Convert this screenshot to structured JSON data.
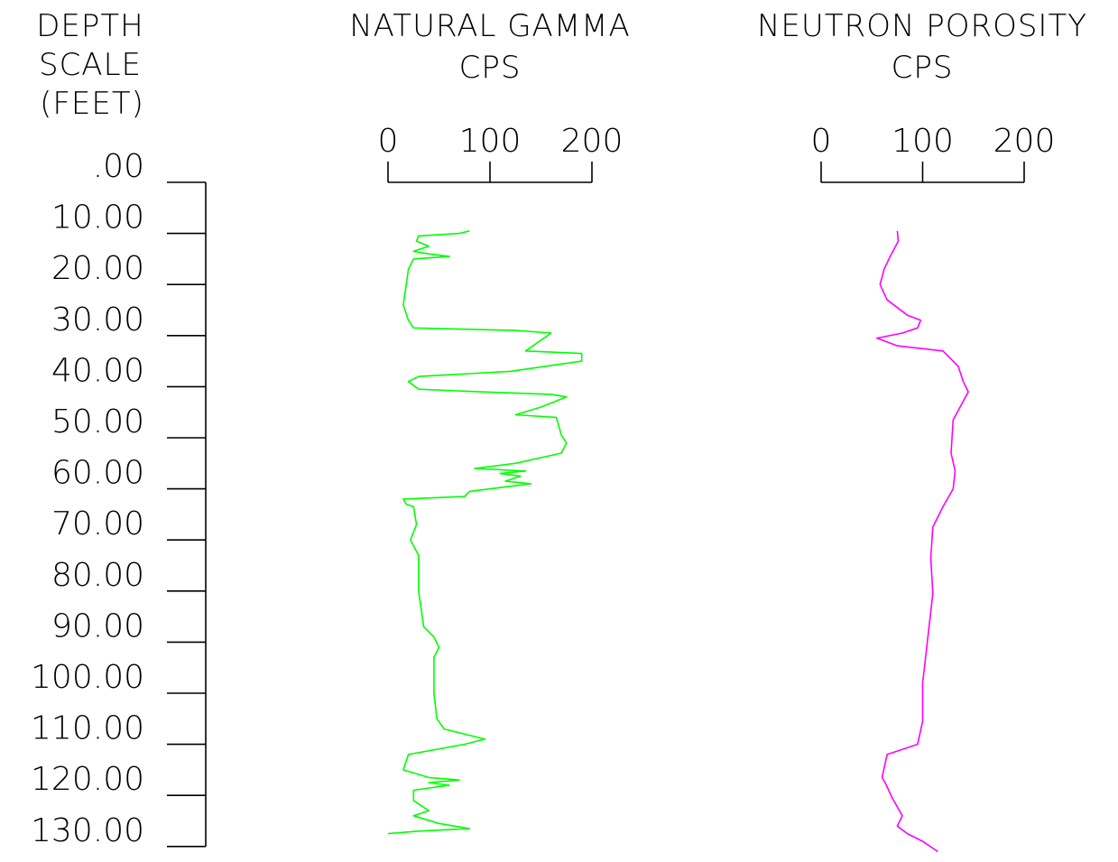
{
  "chart_data": {
    "type": "line",
    "depth_axis": {
      "label_lines": [
        "DEPTH",
        "SCALE",
        "(FEET)"
      ],
      "unit": "FEET",
      "ticks": [
        ".00",
        "10.00",
        "20.00",
        "30.00",
        "40.00",
        "50.00",
        "60.00",
        "70.00",
        "80.00",
        "90.00",
        "100.00",
        "110.00",
        "120.00",
        "130.00"
      ],
      "range": [
        0,
        130
      ],
      "inverted": true
    },
    "tracks": [
      {
        "title": "NATURAL GAMMA",
        "unit": "CPS",
        "xlim": [
          0,
          200
        ],
        "ticks": [
          "0",
          "100",
          "200"
        ],
        "color": "#00ff00",
        "points": [
          [
            80,
            9.5
          ],
          [
            70,
            10.0
          ],
          [
            30,
            10.5
          ],
          [
            28,
            11.5
          ],
          [
            40,
            12.5
          ],
          [
            25,
            13.5
          ],
          [
            40,
            14.0
          ],
          [
            60,
            14.5
          ],
          [
            25,
            15.0
          ],
          [
            20,
            17.0
          ],
          [
            18,
            20.0
          ],
          [
            15,
            24.0
          ],
          [
            20,
            27.0
          ],
          [
            25,
            28.5
          ],
          [
            125,
            29.0
          ],
          [
            160,
            29.5
          ],
          [
            135,
            33.0
          ],
          [
            190,
            33.5
          ],
          [
            190,
            35.0
          ],
          [
            120,
            37.0
          ],
          [
            30,
            38.0
          ],
          [
            20,
            39.0
          ],
          [
            30,
            40.5
          ],
          [
            90,
            41.0
          ],
          [
            160,
            41.5
          ],
          [
            175,
            42.0
          ],
          [
            150,
            44.0
          ],
          [
            125,
            45.5
          ],
          [
            165,
            46.0
          ],
          [
            170,
            49.5
          ],
          [
            175,
            51.0
          ],
          [
            170,
            53.0
          ],
          [
            125,
            55.0
          ],
          [
            85,
            56.0
          ],
          [
            135,
            56.5
          ],
          [
            110,
            57.0
          ],
          [
            130,
            57.5
          ],
          [
            115,
            58.5
          ],
          [
            140,
            59.0
          ],
          [
            80,
            60.5
          ],
          [
            75,
            61.5
          ],
          [
            15,
            62.0
          ],
          [
            18,
            63.0
          ],
          [
            25,
            63.5
          ],
          [
            28,
            67.0
          ],
          [
            22,
            70.0
          ],
          [
            30,
            73.0
          ],
          [
            30,
            80.0
          ],
          [
            35,
            87.0
          ],
          [
            45,
            89.0
          ],
          [
            50,
            91.0
          ],
          [
            45,
            93.0
          ],
          [
            45,
            100.0
          ],
          [
            48,
            105.0
          ],
          [
            55,
            107.0
          ],
          [
            95,
            109.0
          ],
          [
            75,
            110.0
          ],
          [
            20,
            112.0
          ],
          [
            15,
            115.0
          ],
          [
            40,
            116.5
          ],
          [
            70,
            117.0
          ],
          [
            40,
            117.5
          ],
          [
            60,
            118.0
          ],
          [
            25,
            119.0
          ],
          [
            25,
            121.0
          ],
          [
            40,
            123.0
          ],
          [
            25,
            124.0
          ],
          [
            50,
            125.5
          ],
          [
            80,
            126.5
          ],
          [
            30,
            127.0
          ],
          [
            0,
            127.5
          ]
        ]
      },
      {
        "title": "NEUTRON POROSITY",
        "unit": "CPS",
        "xlim": [
          0,
          200
        ],
        "ticks": [
          "0",
          "100",
          "200"
        ],
        "color": "#ff00ff",
        "points": [
          [
            75,
            9.5
          ],
          [
            76,
            11.5
          ],
          [
            68,
            14.5
          ],
          [
            62,
            17.0
          ],
          [
            58,
            20.0
          ],
          [
            65,
            23.0
          ],
          [
            85,
            26.0
          ],
          [
            98,
            27.0
          ],
          [
            95,
            28.5
          ],
          [
            80,
            29.5
          ],
          [
            55,
            30.5
          ],
          [
            75,
            32.0
          ],
          [
            120,
            33.0
          ],
          [
            135,
            36.0
          ],
          [
            140,
            39.0
          ],
          [
            145,
            41.0
          ],
          [
            130,
            46.5
          ],
          [
            128,
            53.0
          ],
          [
            132,
            56.5
          ],
          [
            130,
            60.0
          ],
          [
            120,
            63.5
          ],
          [
            110,
            67.5
          ],
          [
            108,
            73.5
          ],
          [
            110,
            80.5
          ],
          [
            100,
            98.0
          ],
          [
            100,
            105.5
          ],
          [
            95,
            110.0
          ],
          [
            65,
            112.0
          ],
          [
            60,
            116.5
          ],
          [
            63,
            117.5
          ],
          [
            70,
            120.5
          ],
          [
            80,
            124.0
          ],
          [
            75,
            126.0
          ],
          [
            85,
            127.5
          ],
          [
            100,
            129.0
          ],
          [
            115,
            131.0
          ]
        ]
      }
    ]
  }
}
